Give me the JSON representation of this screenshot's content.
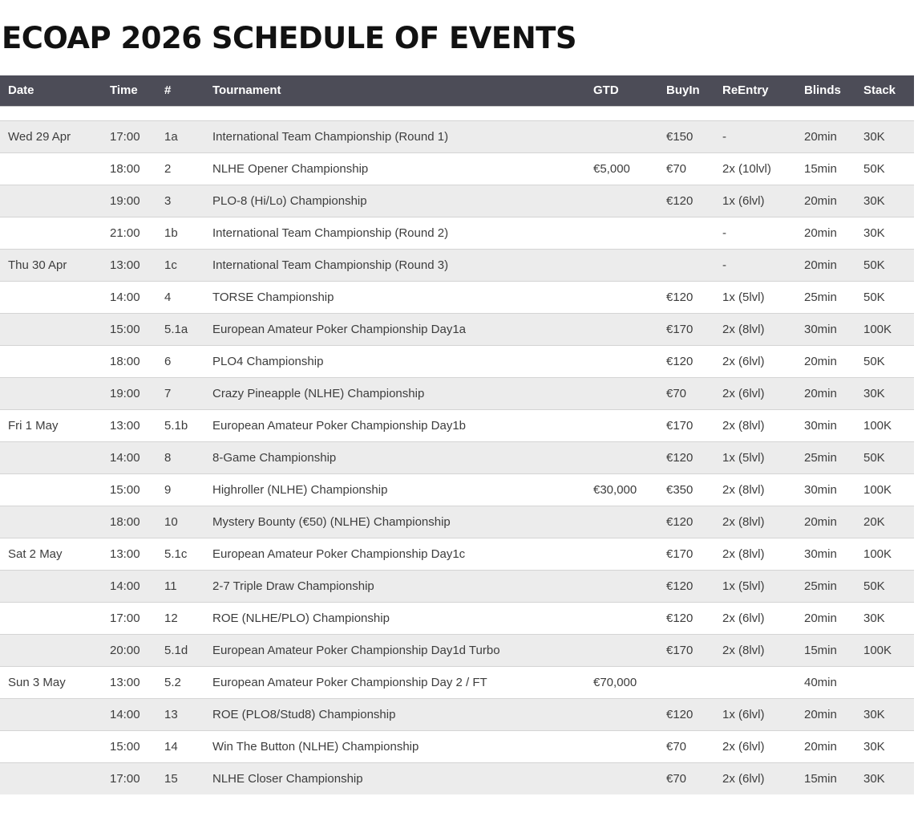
{
  "page": {
    "title": "ECOAP 2026 SCHEDULE OF EVENTS"
  },
  "colors": {
    "header_bg": "#4c4c57",
    "header_text": "#ffffff",
    "stripe": "#ececec",
    "row_border": "#d4d4d4",
    "body_text": "#3d3d3d",
    "title_text": "#121212"
  },
  "table": {
    "columns": [
      {
        "key": "date",
        "label": "Date"
      },
      {
        "key": "time",
        "label": "Time"
      },
      {
        "key": "num",
        "label": "#"
      },
      {
        "key": "tournament",
        "label": "Tournament"
      },
      {
        "key": "gtd",
        "label": "GTD"
      },
      {
        "key": "buyin",
        "label": "BuyIn"
      },
      {
        "key": "reentry",
        "label": "ReEntry"
      },
      {
        "key": "blinds",
        "label": "Blinds"
      },
      {
        "key": "stack",
        "label": "Stack"
      }
    ],
    "rows": [
      {
        "date": "Wed 29 Apr",
        "time": "17:00",
        "num": "1a",
        "tournament": "International Team Championship (Round 1)",
        "gtd": "",
        "buyin": "€150",
        "reentry": "-",
        "blinds": "20min",
        "stack": "30K"
      },
      {
        "date": "",
        "time": "18:00",
        "num": "2",
        "tournament": "NLHE Opener Championship",
        "gtd": "€5,000",
        "buyin": "€70",
        "reentry": "2x (10lvl)",
        "blinds": "15min",
        "stack": "50K"
      },
      {
        "date": "",
        "time": "19:00",
        "num": "3",
        "tournament": "PLO-8 (Hi/Lo) Championship",
        "gtd": "",
        "buyin": "€120",
        "reentry": "1x (6lvl)",
        "blinds": "20min",
        "stack": "30K"
      },
      {
        "date": "",
        "time": "21:00",
        "num": "1b",
        "tournament": "International Team Championship (Round 2)",
        "gtd": "",
        "buyin": "",
        "reentry": "-",
        "blinds": "20min",
        "stack": "30K"
      },
      {
        "date": "Thu 30 Apr",
        "time": "13:00",
        "num": "1c",
        "tournament": "International Team Championship (Round 3)",
        "gtd": "",
        "buyin": "",
        "reentry": "-",
        "blinds": "20min",
        "stack": "50K"
      },
      {
        "date": "",
        "time": "14:00",
        "num": "4",
        "tournament": "TORSE Championship",
        "gtd": "",
        "buyin": "€120",
        "reentry": "1x (5lvl)",
        "blinds": "25min",
        "stack": "50K"
      },
      {
        "date": "",
        "time": "15:00",
        "num": "5.1a",
        "tournament": "European Amateur Poker Championship Day1a",
        "gtd": "",
        "buyin": "€170",
        "reentry": "2x (8lvl)",
        "blinds": "30min",
        "stack": "100K"
      },
      {
        "date": "",
        "time": "18:00",
        "num": "6",
        "tournament": "PLO4 Championship",
        "gtd": "",
        "buyin": "€120",
        "reentry": "2x (6lvl)",
        "blinds": "20min",
        "stack": "50K"
      },
      {
        "date": "",
        "time": "19:00",
        "num": "7",
        "tournament": "Crazy Pineapple (NLHE) Championship",
        "gtd": "",
        "buyin": "€70",
        "reentry": "2x (6lvl)",
        "blinds": "20min",
        "stack": "30K"
      },
      {
        "date": "Fri 1 May",
        "time": "13:00",
        "num": "5.1b",
        "tournament": "European Amateur Poker Championship Day1b",
        "gtd": "",
        "buyin": "€170",
        "reentry": "2x (8lvl)",
        "blinds": "30min",
        "stack": "100K"
      },
      {
        "date": "",
        "time": "14:00",
        "num": "8",
        "tournament": "8-Game Championship",
        "gtd": "",
        "buyin": "€120",
        "reentry": "1x (5lvl)",
        "blinds": "25min",
        "stack": "50K"
      },
      {
        "date": "",
        "time": "15:00",
        "num": "9",
        "tournament": "Highroller (NLHE) Championship",
        "gtd": "€30,000",
        "buyin": "€350",
        "reentry": "2x (8lvl)",
        "blinds": "30min",
        "stack": "100K"
      },
      {
        "date": "",
        "time": "18:00",
        "num": "10",
        "tournament": "Mystery Bounty (€50) (NLHE) Championship",
        "gtd": "",
        "buyin": "€120",
        "reentry": "2x (8lvl)",
        "blinds": "20min",
        "stack": "20K"
      },
      {
        "date": "Sat 2 May",
        "time": "13:00",
        "num": "5.1c",
        "tournament": "European Amateur Poker Championship Day1c",
        "gtd": "",
        "buyin": "€170",
        "reentry": "2x (8lvl)",
        "blinds": "30min",
        "stack": "100K"
      },
      {
        "date": "",
        "time": "14:00",
        "num": "11",
        "tournament": "2-7 Triple Draw Championship",
        "gtd": "",
        "buyin": "€120",
        "reentry": "1x (5lvl)",
        "blinds": "25min",
        "stack": "50K"
      },
      {
        "date": "",
        "time": "17:00",
        "num": "12",
        "tournament": "ROE (NLHE/PLO) Championship",
        "gtd": "",
        "buyin": "€120",
        "reentry": "2x (6lvl)",
        "blinds": "20min",
        "stack": "30K"
      },
      {
        "date": "",
        "time": "20:00",
        "num": "5.1d",
        "tournament": "European Amateur Poker Championship Day1d Turbo",
        "gtd": "",
        "buyin": "€170",
        "reentry": "2x (8lvl)",
        "blinds": "15min",
        "stack": "100K"
      },
      {
        "date": "Sun 3 May",
        "time": "13:00",
        "num": "5.2",
        "tournament": "European Amateur Poker Championship Day 2 / FT",
        "gtd": "€70,000",
        "buyin": "",
        "reentry": "",
        "blinds": "40min",
        "stack": ""
      },
      {
        "date": "",
        "time": "14:00",
        "num": "13",
        "tournament": "ROE (PLO8/Stud8) Championship",
        "gtd": "",
        "buyin": "€120",
        "reentry": "1x (6lvl)",
        "blinds": "20min",
        "stack": "30K"
      },
      {
        "date": "",
        "time": "15:00",
        "num": "14",
        "tournament": "Win The Button (NLHE) Championship",
        "gtd": "",
        "buyin": "€70",
        "reentry": "2x (6lvl)",
        "blinds": "20min",
        "stack": "30K"
      },
      {
        "date": "",
        "time": "17:00",
        "num": "15",
        "tournament": "NLHE Closer Championship",
        "gtd": "",
        "buyin": "€70",
        "reentry": "2x (6lvl)",
        "blinds": "15min",
        "stack": "30K"
      }
    ]
  }
}
